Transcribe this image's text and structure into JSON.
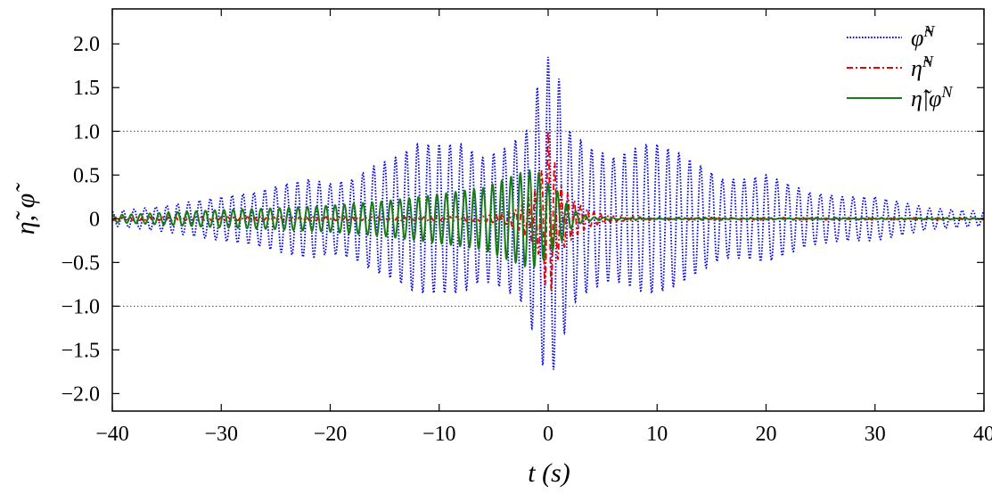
{
  "chart_data": {
    "type": "line",
    "xlabel": "t (s)",
    "ylabel": "η̃, φ̃",
    "xlim": [
      -40,
      40
    ],
    "ylim": [
      -2.2,
      2.4
    ],
    "xticks": [
      -40,
      -30,
      -20,
      -10,
      0,
      10,
      20,
      30,
      40
    ],
    "xtick_labels": [
      "−40",
      "−30",
      "−20",
      "−10",
      "0",
      "10",
      "20",
      "30",
      "40"
    ],
    "yticks": [
      -2.0,
      -1.5,
      -1.0,
      -0.5,
      0,
      0.5,
      1.0,
      1.5,
      2.0
    ],
    "ytick_labels": [
      "−2.0",
      "−1.5",
      "−1.0",
      "−0.5",
      "0",
      "0.5",
      "1.0",
      "1.5",
      "2.0"
    ],
    "reference_lines_y": [
      1.0,
      -1.0
    ],
    "legend_position": "top-right",
    "series": [
      {
        "name": "φ̃^N",
        "legend_base": "φ̃",
        "legend_sup": "N",
        "color": "#0000ee",
        "style": "dotted",
        "period_s": 1.0,
        "envelope_t": [
          -40,
          -35,
          -30,
          -27,
          -24,
          -22,
          -20,
          -18,
          -16,
          -14,
          -12,
          -10,
          -9,
          -8,
          -6,
          -4,
          -2,
          -1,
          0,
          1,
          2,
          4,
          6,
          8,
          9,
          10,
          12,
          14,
          16,
          18,
          20,
          22,
          24,
          27,
          30,
          35,
          40
        ],
        "envelope_amp": [
          0.08,
          0.15,
          0.25,
          0.3,
          0.4,
          0.45,
          0.4,
          0.45,
          0.6,
          0.7,
          0.85,
          0.85,
          0.85,
          0.85,
          0.7,
          0.8,
          1.0,
          1.5,
          1.85,
          1.6,
          1.0,
          0.8,
          0.7,
          0.8,
          0.85,
          0.85,
          0.75,
          0.6,
          0.45,
          0.45,
          0.5,
          0.4,
          0.3,
          0.25,
          0.25,
          0.12,
          0.08
        ]
      },
      {
        "name": "η̃^N",
        "legend_base": "η̃",
        "legend_sup": "N",
        "color": "#ee0000",
        "style": "dashdot",
        "period_s": 0.6,
        "envelope_t": [
          -40,
          -20,
          -10,
          -6,
          -4,
          -3,
          -2,
          -1,
          -0.5,
          0,
          0.5,
          1,
          2,
          3,
          4,
          6,
          10,
          40
        ],
        "envelope_amp": [
          0.02,
          0.02,
          0.02,
          0.03,
          0.06,
          0.1,
          0.2,
          0.35,
          0.6,
          1.0,
          0.7,
          0.4,
          0.25,
          0.15,
          0.08,
          0.03,
          0.015,
          0.01
        ]
      },
      {
        "name": "η̃|φ^N",
        "legend_base": "η̃|φ",
        "legend_sup": "N",
        "color": "#1a7a1a",
        "style": "solid",
        "period_s": 0.85,
        "envelope_t": [
          -40,
          -35,
          -30,
          -25,
          -20,
          -15,
          -10,
          -6,
          -4,
          -2,
          -1,
          0,
          1,
          2,
          3,
          4,
          6,
          10,
          40
        ],
        "envelope_amp": [
          0.04,
          0.07,
          0.1,
          0.12,
          0.15,
          0.2,
          0.28,
          0.35,
          0.45,
          0.55,
          0.55,
          0.4,
          0.3,
          0.12,
          0.05,
          0.02,
          0.01,
          0.005,
          0.005
        ]
      }
    ]
  }
}
